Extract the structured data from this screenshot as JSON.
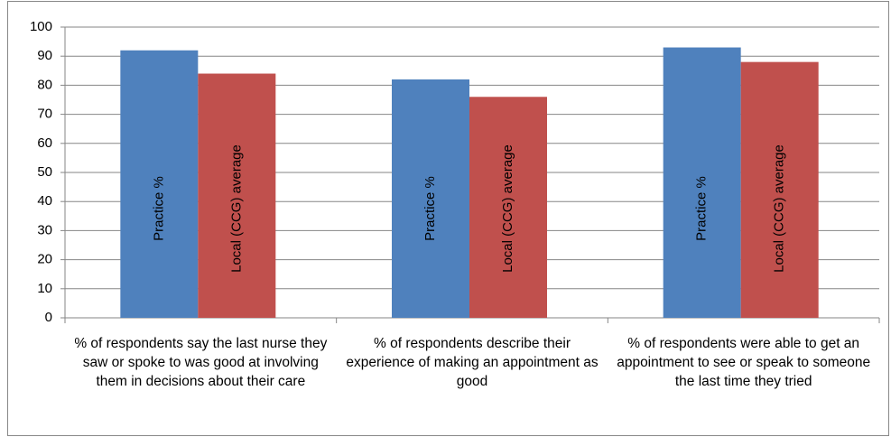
{
  "chart_data": {
    "type": "bar",
    "categories": [
      "% of respondents say the last nurse they saw or spoke to was good at involving them in decisions about their care",
      "% of respondents describe their experience of making an appointment as good",
      "% of respondents were able to get an appointment to see or speak to someone the last time they tried"
    ],
    "series": [
      {
        "name": "Practice %",
        "color": "#4f81bd",
        "values": [
          92,
          82,
          93
        ]
      },
      {
        "name": "Local (CCG) average",
        "color": "#c0504d",
        "values": [
          84,
          76,
          88
        ]
      }
    ],
    "ylim": [
      0,
      100
    ],
    "yticks": [
      0,
      10,
      20,
      30,
      40,
      50,
      60,
      70,
      80,
      90,
      100
    ],
    "grid": true
  }
}
